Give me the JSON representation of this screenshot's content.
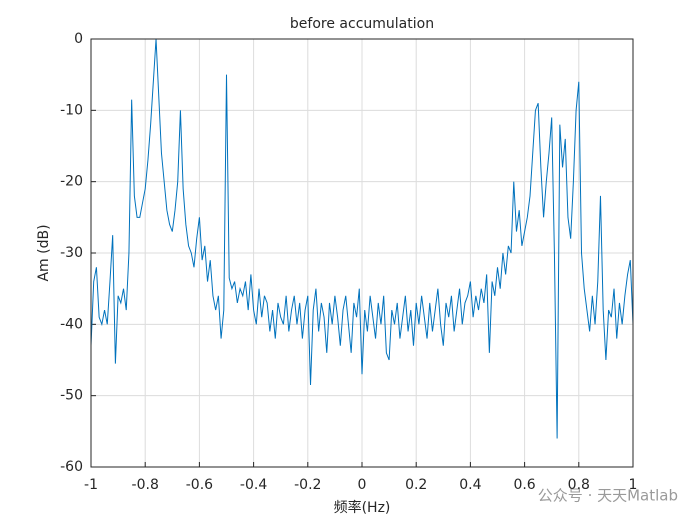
{
  "chart_data": {
    "type": "line",
    "title": "before accumulation",
    "xlabel": "频率(Hz)",
    "ylabel": "Am (dB)",
    "watermark": "公众号 · 天天Matlab",
    "color": "#0072bd",
    "grid": true,
    "xlim": [
      -1,
      1
    ],
    "ylim": [
      -60,
      0
    ],
    "xticks": [
      -1,
      -0.8,
      -0.6,
      -0.4,
      -0.2,
      0,
      0.2,
      0.4,
      0.6,
      0.8,
      1
    ],
    "yticks": [
      0,
      -10,
      -20,
      -30,
      -40,
      -50,
      -60
    ],
    "x": [
      -1,
      -0.99,
      -0.98,
      -0.97,
      -0.96,
      -0.95,
      -0.94,
      -0.93,
      -0.92,
      -0.91,
      -0.9,
      -0.89,
      -0.88,
      -0.87,
      -0.86,
      -0.85,
      -0.84,
      -0.83,
      -0.82,
      -0.81,
      -0.8,
      -0.79,
      -0.78,
      -0.77,
      -0.76,
      -0.75,
      -0.74,
      -0.73,
      -0.72,
      -0.71,
      -0.7,
      -0.69,
      -0.68,
      -0.67,
      -0.66,
      -0.65,
      -0.64,
      -0.63,
      -0.62,
      -0.61,
      -0.6,
      -0.59,
      -0.58,
      -0.57,
      -0.56,
      -0.55,
      -0.54,
      -0.53,
      -0.52,
      -0.51,
      -0.5,
      -0.49,
      -0.48,
      -0.47,
      -0.46,
      -0.45,
      -0.44,
      -0.43,
      -0.42,
      -0.41,
      -0.4,
      -0.39,
      -0.38,
      -0.37,
      -0.36,
      -0.35,
      -0.34,
      -0.33,
      -0.32,
      -0.31,
      -0.3,
      -0.29,
      -0.28,
      -0.27,
      -0.26,
      -0.25,
      -0.24,
      -0.23,
      -0.22,
      -0.21,
      -0.2,
      -0.19,
      -0.18,
      -0.17,
      -0.16,
      -0.15,
      -0.14,
      -0.13,
      -0.12,
      -0.11,
      -0.1,
      -0.09,
      -0.08,
      -0.07,
      -0.06,
      -0.05,
      -0.04,
      -0.03,
      -0.02,
      -0.01,
      0,
      0.01,
      0.02,
      0.03,
      0.04,
      0.05,
      0.06,
      0.07,
      0.08,
      0.09,
      0.1,
      0.11,
      0.12,
      0.13,
      0.14,
      0.15,
      0.16,
      0.17,
      0.18,
      0.19,
      0.2,
      0.21,
      0.22,
      0.23,
      0.24,
      0.25,
      0.26,
      0.27,
      0.28,
      0.29,
      0.3,
      0.31,
      0.32,
      0.33,
      0.34,
      0.35,
      0.36,
      0.37,
      0.38,
      0.39,
      0.4,
      0.41,
      0.42,
      0.43,
      0.44,
      0.45,
      0.46,
      0.47,
      0.48,
      0.49,
      0.5,
      0.51,
      0.52,
      0.53,
      0.54,
      0.55,
      0.56,
      0.57,
      0.58,
      0.59,
      0.6,
      0.61,
      0.62,
      0.63,
      0.64,
      0.65,
      0.66,
      0.67,
      0.68,
      0.69,
      0.7,
      0.71,
      0.72,
      0.73,
      0.74,
      0.75,
      0.76,
      0.77,
      0.78,
      0.79,
      0.8,
      0.81,
      0.82,
      0.83,
      0.84,
      0.85,
      0.86,
      0.87,
      0.88,
      0.89,
      0.9,
      0.91,
      0.92,
      0.93,
      0.94,
      0.95,
      0.96,
      0.97,
      0.98,
      0.99,
      1
    ],
    "values": [
      -43,
      -34,
      -32,
      -39,
      -40,
      -38,
      -40,
      -34,
      -27.5,
      -45.5,
      -36,
      -37,
      -35,
      -38,
      -30,
      -8.5,
      -22,
      -25,
      -25,
      -23,
      -21,
      -17,
      -12,
      -6,
      0,
      -8,
      -16,
      -20,
      -24,
      -26,
      -27,
      -24,
      -20,
      -10,
      -21,
      -26,
      -29,
      -30,
      -32,
      -28,
      -25,
      -31,
      -29,
      -34,
      -31,
      -36,
      -38,
      -36,
      -42,
      -38,
      -5,
      -33.5,
      -35,
      -34,
      -37,
      -35,
      -36,
      -34,
      -38,
      -33,
      -38,
      -40,
      -35,
      -39,
      -36,
      -37,
      -41,
      -38,
      -42,
      -37,
      -39,
      -40,
      -36,
      -41,
      -38,
      -36,
      -40,
      -37,
      -42,
      -38,
      -36,
      -48.5,
      -38,
      -35,
      -41,
      -37,
      -39,
      -44,
      -37,
      -40,
      -36,
      -39,
      -43,
      -38,
      -36,
      -40,
      -44,
      -37,
      -39,
      -35,
      -47,
      -38,
      -41,
      -36,
      -39,
      -42,
      -37,
      -40,
      -36,
      -44,
      -45,
      -38,
      -40,
      -37,
      -42,
      -39,
      -36,
      -41,
      -38,
      -43,
      -37,
      -40,
      -36,
      -39,
      -42,
      -37,
      -41,
      -38,
      -35,
      -40,
      -43,
      -37,
      -39,
      -36,
      -41,
      -38,
      -35,
      -40,
      -37,
      -36,
      -34,
      -39,
      -36,
      -38,
      -35,
      -37,
      -33,
      -44,
      -34,
      -36,
      -32,
      -35,
      -30,
      -33,
      -29,
      -30,
      -20,
      -27,
      -24,
      -29,
      -27,
      -25,
      -22,
      -16,
      -10,
      -9,
      -18,
      -25,
      -20,
      -16,
      -11,
      -30,
      -56,
      -12,
      -18,
      -14,
      -25,
      -28,
      -20,
      -10,
      -6,
      -30,
      -35,
      -38,
      -41,
      -36,
      -40,
      -34,
      -22,
      -38,
      -45,
      -38,
      -39,
      -35,
      -42,
      -37,
      -40,
      -36,
      -33,
      -31,
      -40
    ]
  }
}
